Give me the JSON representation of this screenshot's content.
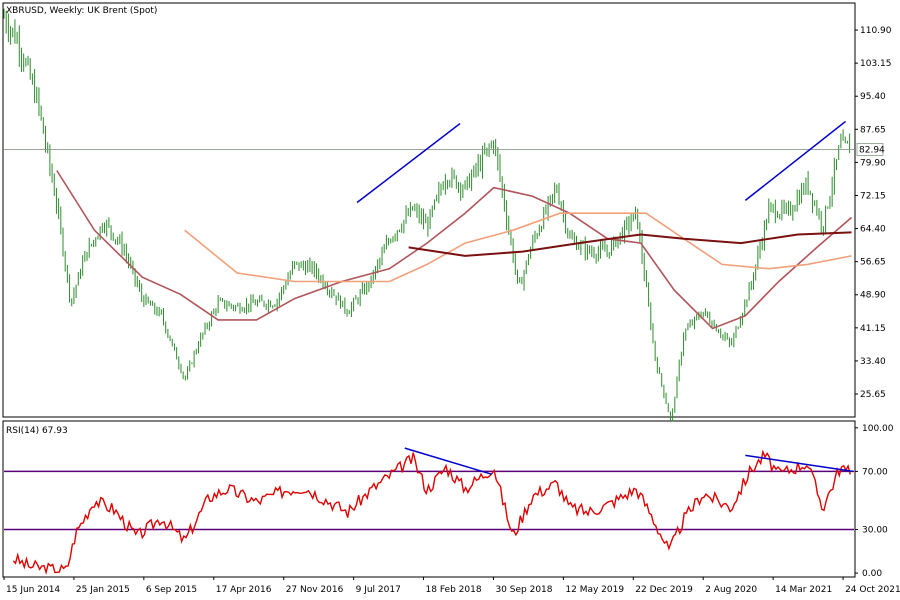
{
  "header": {
    "symbol_label": "XBRUSD, Weekly:  UK Brent (Spot)",
    "rsi_label": "RSI(14) 67.93"
  },
  "current_price_label": "82.94",
  "colors": {
    "background": "#ffffff",
    "frame": "#000000",
    "candle": "#2e8b2e",
    "ma_fast": "#b0555a",
    "ma_mid": "#f2a07a",
    "ma_slow": "#7a1010",
    "trendline": "#0000cc",
    "rsi_line": "#e00000",
    "rsi_levels": "#5b007a"
  },
  "chart_data": [
    {
      "type": "candlestick",
      "title": "XBRUSD, Weekly:  UK Brent (Spot)",
      "ylim": [
        20.5,
        117
      ],
      "y_ticks": [
        "110.90",
        "103.15",
        "95.40",
        "87.65",
        "79.90",
        "72.15",
        "64.40",
        "56.65",
        "48.90",
        "41.15",
        "33.40",
        "25.65"
      ],
      "x_ticks": [
        "15 Jun 2014",
        "25 Jan 2015",
        "6 Sep 2015",
        "17 Apr 2016",
        "27 Nov 2016",
        "9 Jul 2017",
        "18 Feb 2018",
        "30 Sep 2018",
        "12 May 2019",
        "22 Dec 2019",
        "2 Aug 2020",
        "14 Mar 2021",
        "24 Oct 2021"
      ],
      "current_price": 82.94,
      "close_path": [
        [
          "2014-06-15",
          114
        ],
        [
          "2014-08-01",
          108
        ],
        [
          "2014-10-01",
          94
        ],
        [
          "2014-12-01",
          70
        ],
        [
          "2015-01-15",
          47
        ],
        [
          "2015-03-01",
          58
        ],
        [
          "2015-05-01",
          66
        ],
        [
          "2015-07-01",
          60
        ],
        [
          "2015-09-01",
          48
        ],
        [
          "2015-11-01",
          44
        ],
        [
          "2016-01-15",
          29
        ],
        [
          "2016-03-01",
          38
        ],
        [
          "2016-05-01",
          47
        ],
        [
          "2016-07-01",
          46
        ],
        [
          "2016-09-01",
          47
        ],
        [
          "2016-11-01",
          47
        ],
        [
          "2017-01-01",
          56
        ],
        [
          "2017-03-01",
          55
        ],
        [
          "2017-06-20",
          45
        ],
        [
          "2017-09-01",
          52
        ],
        [
          "2017-11-01",
          62
        ],
        [
          "2018-01-15",
          69
        ],
        [
          "2018-03-01",
          65
        ],
        [
          "2018-05-01",
          77
        ],
        [
          "2018-07-01",
          74
        ],
        [
          "2018-10-01",
          85
        ],
        [
          "2018-12-20",
          50
        ],
        [
          "2019-02-01",
          61
        ],
        [
          "2019-04-20",
          74
        ],
        [
          "2019-06-01",
          62
        ],
        [
          "2019-08-01",
          59
        ],
        [
          "2019-10-01",
          59
        ],
        [
          "2020-01-01",
          68
        ],
        [
          "2020-03-01",
          34
        ],
        [
          "2020-04-21",
          19
        ],
        [
          "2020-06-01",
          40
        ],
        [
          "2020-08-01",
          45
        ],
        [
          "2020-10-30",
          37
        ],
        [
          "2021-01-01",
          51
        ],
        [
          "2021-03-01",
          69
        ],
        [
          "2021-05-01",
          68
        ],
        [
          "2021-07-01",
          75
        ],
        [
          "2021-08-20",
          65
        ],
        [
          "2021-10-15",
          84
        ],
        [
          "2021-11-20",
          82.94
        ]
      ],
      "series": [
        {
          "name": "",
          "color_key": "ma_fast",
          "points": [
            [
              "2014-12-01",
              78
            ],
            [
              "2015-04-01",
              64
            ],
            [
              "2015-09-01",
              53
            ],
            [
              "2016-01-01",
              49
            ],
            [
              "2016-05-01",
              43
            ],
            [
              "2016-09-01",
              43
            ],
            [
              "2017-01-01",
              48
            ],
            [
              "2017-06-01",
              52
            ],
            [
              "2017-11-01",
              55
            ],
            [
              "2018-03-01",
              61
            ],
            [
              "2018-07-01",
              68
            ],
            [
              "2018-10-01",
              74
            ],
            [
              "2019-02-01",
              72
            ],
            [
              "2019-06-01",
              68
            ],
            [
              "2019-10-01",
              62
            ],
            [
              "2020-01-15",
              61
            ],
            [
              "2020-05-01",
              50
            ],
            [
              "2020-09-01",
              41
            ],
            [
              "2020-12-15",
              44
            ],
            [
              "2021-04-01",
              52
            ],
            [
              "2021-08-01",
              60
            ],
            [
              "2021-11-20",
              67
            ]
          ]
        },
        {
          "name": "",
          "color_key": "ma_mid",
          "points": [
            [
              "2016-01-15",
              64
            ],
            [
              "2016-07-01",
              54
            ],
            [
              "2017-01-01",
              52
            ],
            [
              "2017-06-01",
              52
            ],
            [
              "2017-11-01",
              52
            ],
            [
              "2018-03-01",
              56
            ],
            [
              "2018-07-01",
              61
            ],
            [
              "2018-12-01",
              64
            ],
            [
              "2019-05-01",
              68
            ],
            [
              "2019-10-01",
              68
            ],
            [
              "2020-02-01",
              68
            ],
            [
              "2020-06-01",
              62
            ],
            [
              "2020-10-01",
              56
            ],
            [
              "2021-03-01",
              55
            ],
            [
              "2021-07-01",
              56
            ],
            [
              "2021-11-20",
              58
            ]
          ]
        },
        {
          "name": "",
          "color_key": "ma_slow",
          "points": [
            [
              "2018-01-01",
              60
            ],
            [
              "2018-07-01",
              58
            ],
            [
              "2019-01-01",
              59
            ],
            [
              "2019-07-01",
              61
            ],
            [
              "2020-01-15",
              63
            ],
            [
              "2020-06-01",
              62
            ],
            [
              "2020-12-01",
              61
            ],
            [
              "2021-06-01",
              63
            ],
            [
              "2021-11-20",
              63.5
            ]
          ]
        }
      ],
      "annotations": {
        "trendlines": [
          {
            "from": [
              "2017-07-20",
              70.5
            ],
            "to": [
              "2018-06-15",
              89
            ]
          },
          {
            "from": [
              "2020-12-15",
              71
            ],
            "to": [
              "2021-11-01",
              89.5
            ]
          }
        ]
      }
    },
    {
      "type": "line",
      "title": "RSI(14) 67.93",
      "ylim": [
        -2,
        104
      ],
      "y_ticks": [
        "100.00",
        "70.00",
        "30.00",
        "0.00"
      ],
      "levels": [
        70,
        30
      ],
      "last_value": 67.93,
      "series": [
        {
          "name": "",
          "color_key": "rsi_line",
          "points": [
            [
              "2014-07-15",
              10
            ],
            [
              "2014-09-01",
              5
            ],
            [
              "2014-11-01",
              3
            ],
            [
              "2015-01-01",
              2
            ],
            [
              "2015-02-01",
              28
            ],
            [
              "2015-04-01",
              50
            ],
            [
              "2015-06-01",
              44
            ],
            [
              "2015-08-15",
              25
            ],
            [
              "2015-11-01",
              38
            ],
            [
              "2016-01-15",
              22
            ],
            [
              "2016-04-01",
              52
            ],
            [
              "2016-06-01",
              58
            ],
            [
              "2016-09-01",
              49
            ],
            [
              "2016-12-01",
              57
            ],
            [
              "2017-02-01",
              59
            ],
            [
              "2017-05-01",
              48
            ],
            [
              "2017-06-20",
              42
            ],
            [
              "2017-09-01",
              57
            ],
            [
              "2017-11-01",
              67
            ],
            [
              "2018-01-15",
              79
            ],
            [
              "2018-03-01",
              57
            ],
            [
              "2018-05-01",
              73
            ],
            [
              "2018-07-01",
              58
            ],
            [
              "2018-10-01",
              73
            ],
            [
              "2018-12-01",
              25
            ],
            [
              "2019-02-01",
              53
            ],
            [
              "2019-04-20",
              62
            ],
            [
              "2019-06-01",
              45
            ],
            [
              "2019-08-01",
              42
            ],
            [
              "2019-10-01",
              47
            ],
            [
              "2020-01-01",
              58
            ],
            [
              "2020-02-15",
              41
            ],
            [
              "2020-04-15",
              15
            ],
            [
              "2020-06-01",
              37
            ],
            [
              "2020-08-01",
              55
            ],
            [
              "2020-10-30",
              45
            ],
            [
              "2021-01-01",
              71
            ],
            [
              "2021-02-15",
              81
            ],
            [
              "2021-04-01",
              68
            ],
            [
              "2021-07-01",
              76
            ],
            [
              "2021-08-20",
              45
            ],
            [
              "2021-10-15",
              73
            ],
            [
              "2021-11-20",
              67.93
            ]
          ]
        }
      ],
      "annotations": {
        "trendlines": [
          {
            "from": [
              "2017-12-20",
              86
            ],
            "to": [
              "2018-09-25",
              68
            ]
          },
          {
            "from": [
              "2020-12-15",
              81
            ],
            "to": [
              "2021-11-25",
              70
            ]
          }
        ]
      }
    }
  ]
}
